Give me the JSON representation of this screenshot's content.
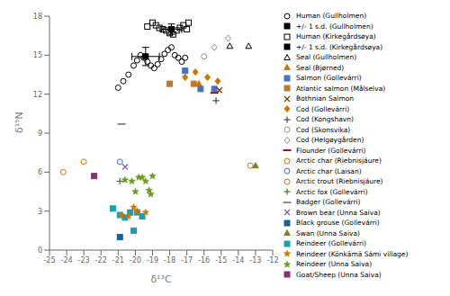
{
  "chart_data": {
    "type": "scatter",
    "xlabel": "δ¹³C",
    "ylabel": "δ¹⁵N",
    "xlim": [
      -25,
      -12
    ],
    "ylim": [
      0,
      18
    ],
    "xticks": [
      -25,
      -24,
      -23,
      -22,
      -21,
      -20,
      -19,
      -18,
      -17,
      -16,
      -15,
      -14,
      -13,
      -12
    ],
    "yticks": [
      0,
      3,
      6,
      9,
      12,
      15,
      18
    ],
    "grid": false,
    "legend": "right",
    "series": [
      {
        "name": "Human (Gullholmen)",
        "color": "black",
        "marker": "open_circle",
        "values": [
          [
            -21.0,
            12.5
          ],
          [
            -20.7,
            13.0
          ],
          [
            -20.4,
            13.5
          ],
          [
            -20.1,
            14.2
          ],
          [
            -19.9,
            14.6
          ],
          [
            -19.7,
            15.0
          ],
          [
            -19.5,
            14.8
          ],
          [
            -19.3,
            14.5
          ],
          [
            -19.1,
            14.2
          ],
          [
            -18.9,
            14.0
          ],
          [
            -18.7,
            14.3
          ],
          [
            -18.5,
            14.7
          ],
          [
            -18.3,
            15.1
          ],
          [
            -18.1,
            15.4
          ],
          [
            -17.9,
            15.6
          ],
          [
            -17.7,
            15.0
          ],
          [
            -17.5,
            14.8
          ],
          [
            -17.3,
            14.5
          ],
          [
            -17.1,
            14.8
          ]
        ]
      },
      {
        "name": "+/- 1 s.d. (Gullholmen)",
        "color": "black",
        "marker": "square",
        "values": [
          [
            -19.4,
            14.9
          ]
        ],
        "xerr": [
          0.8
        ],
        "yerr": [
          0.7
        ]
      },
      {
        "name": "Human (Kirkegårdsøya)",
        "color": "black",
        "marker": "open_square",
        "values": [
          [
            -19.3,
            17.2
          ],
          [
            -19.0,
            17.5
          ],
          [
            -18.8,
            17.3
          ],
          [
            -18.6,
            17.1
          ],
          [
            -18.4,
            17.0
          ],
          [
            -18.2,
            16.9
          ],
          [
            -18.0,
            16.7
          ],
          [
            -17.8,
            16.6
          ],
          [
            -17.6,
            16.9
          ],
          [
            -17.4,
            17.1
          ],
          [
            -17.2,
            17.3
          ],
          [
            -17.0,
            17.0
          ],
          [
            -16.9,
            17.5
          ]
        ]
      },
      {
        "name": "+/- 1 s.d. (Kirkegårdsøya)",
        "color": "black",
        "marker": "square",
        "values": [
          [
            -17.9,
            17.0
          ]
        ],
        "xerr": [
          0.6
        ],
        "yerr": [
          0.4
        ]
      },
      {
        "name": "Seal (Gullholmen)",
        "color": "black",
        "marker": "open_triangle",
        "values": [
          [
            -14.5,
            15.7
          ],
          [
            -13.4,
            15.7
          ]
        ]
      },
      {
        "name": "Seal (Bjørned)",
        "color": "#c87800",
        "marker": "triangle",
        "values": [
          [
            -16.3,
            12.8
          ]
        ]
      },
      {
        "name": "Salmon (Gollevárri)",
        "color": "#4472c4",
        "marker": "square",
        "values": [
          [
            -17.1,
            13.8
          ],
          [
            -16.2,
            12.4
          ],
          [
            -15.4,
            12.4
          ]
        ]
      },
      {
        "name": "Atlantic salmon (Målselva)",
        "color": "#c07830",
        "marker": "square",
        "values": [
          [
            -18.0,
            12.8
          ],
          [
            -16.6,
            12.8
          ]
        ]
      },
      {
        "name": "Bothnian Salmon",
        "color": "#7b3f00",
        "marker": "x",
        "values": [
          [
            -15.1,
            12.3
          ]
        ]
      },
      {
        "name": "Cod (Gollevárri)",
        "color": "#c87800",
        "marker": "diamond",
        "values": [
          [
            -17.1,
            13.3
          ],
          [
            -16.5,
            13.7
          ],
          [
            -15.8,
            13.3
          ],
          [
            -15.2,
            13.0
          ]
        ]
      },
      {
        "name": "Cod (Kongshavn)",
        "color": "#505050",
        "marker": "plus",
        "values": [
          [
            -15.3,
            11.5
          ]
        ]
      },
      {
        "name": "Cod (Skonsvika)",
        "color": "#909090",
        "marker": "open_circle",
        "values": [
          [
            -16.0,
            14.9
          ]
        ]
      },
      {
        "name": "Cod (Helgøygården)",
        "color": "#909090",
        "marker": "open_diamond",
        "values": [
          [
            -15.4,
            15.6
          ],
          [
            -14.6,
            16.3
          ]
        ]
      },
      {
        "name": "Flounder (Gollevárri)",
        "color": "#8b0000",
        "marker": "hline",
        "values": [
          [
            -15.4,
            12.1
          ]
        ]
      },
      {
        "name": "Arctic char (Riebnisjáure)",
        "color": "#c87800",
        "marker": "open_circle",
        "values": [
          [
            -23.0,
            6.8
          ],
          [
            -24.2,
            6.0
          ]
        ]
      },
      {
        "name": "Arctic char (Laisan)",
        "color": "#4472c4",
        "marker": "open_circle",
        "values": [
          [
            -20.9,
            6.8
          ]
        ]
      },
      {
        "name": "Arctic trout (Riebnisjáure)",
        "color": "#c07830",
        "marker": "open_circle",
        "values": [
          [
            -13.3,
            6.5
          ]
        ]
      },
      {
        "name": "Arctic fox (Gollevárri)",
        "color": "#4a7a30",
        "marker": "plus",
        "values": [
          [
            -20.9,
            5.3
          ]
        ]
      },
      {
        "name": "Badger (Gollevárri)",
        "color": "#808080",
        "marker": "hline",
        "values": [
          [
            -20.8,
            9.7
          ]
        ]
      },
      {
        "name": "Brown bear (Unna Saiva)",
        "color": "#7a5faa",
        "marker": "x",
        "values": [
          [
            -20.6,
            6.4
          ]
        ]
      },
      {
        "name": "Black grouse (Gollevárri)",
        "color": "#1a6090",
        "marker": "square",
        "values": [
          [
            -20.9,
            1.0
          ]
        ]
      },
      {
        "name": "Swan (Unna Saiva)",
        "color": "#808030",
        "marker": "triangle",
        "values": [
          [
            -13.0,
            6.5
          ]
        ]
      },
      {
        "name": "Reindeer (Gollevárri)",
        "color": "#17a0b0",
        "marker": "square",
        "values": [
          [
            -21.3,
            3.2
          ],
          [
            -20.9,
            2.7
          ],
          [
            -20.6,
            2.5
          ],
          [
            -20.3,
            2.9
          ],
          [
            -20.1,
            1.5
          ],
          [
            -19.9,
            2.9
          ],
          [
            -19.6,
            2.6
          ]
        ]
      },
      {
        "name": "Reindeer (Könkämä Sámi village)",
        "color": "#c87800",
        "marker": "star",
        "values": [
          [
            -20.8,
            2.7
          ],
          [
            -20.4,
            2.6
          ],
          [
            -20.1,
            3.3
          ],
          [
            -19.9,
            3.0
          ],
          [
            -19.4,
            2.9
          ]
        ]
      },
      {
        "name": "Reindeer (Unna Saiva)",
        "color": "#6a9a20",
        "marker": "star",
        "values": [
          [
            -20.6,
            5.4
          ],
          [
            -20.2,
            5.3
          ],
          [
            -20.0,
            4.5
          ],
          [
            -19.8,
            5.6
          ],
          [
            -19.6,
            5.6
          ],
          [
            -19.4,
            5.3
          ],
          [
            -19.2,
            4.6
          ],
          [
            -19.0,
            5.7
          ],
          [
            -19.1,
            4.3
          ]
        ]
      },
      {
        "name": "Goat/Sheep (Unna Saiva)",
        "color": "#8b3070",
        "marker": "square",
        "values": [
          [
            -22.4,
            5.7
          ]
        ]
      }
    ]
  }
}
